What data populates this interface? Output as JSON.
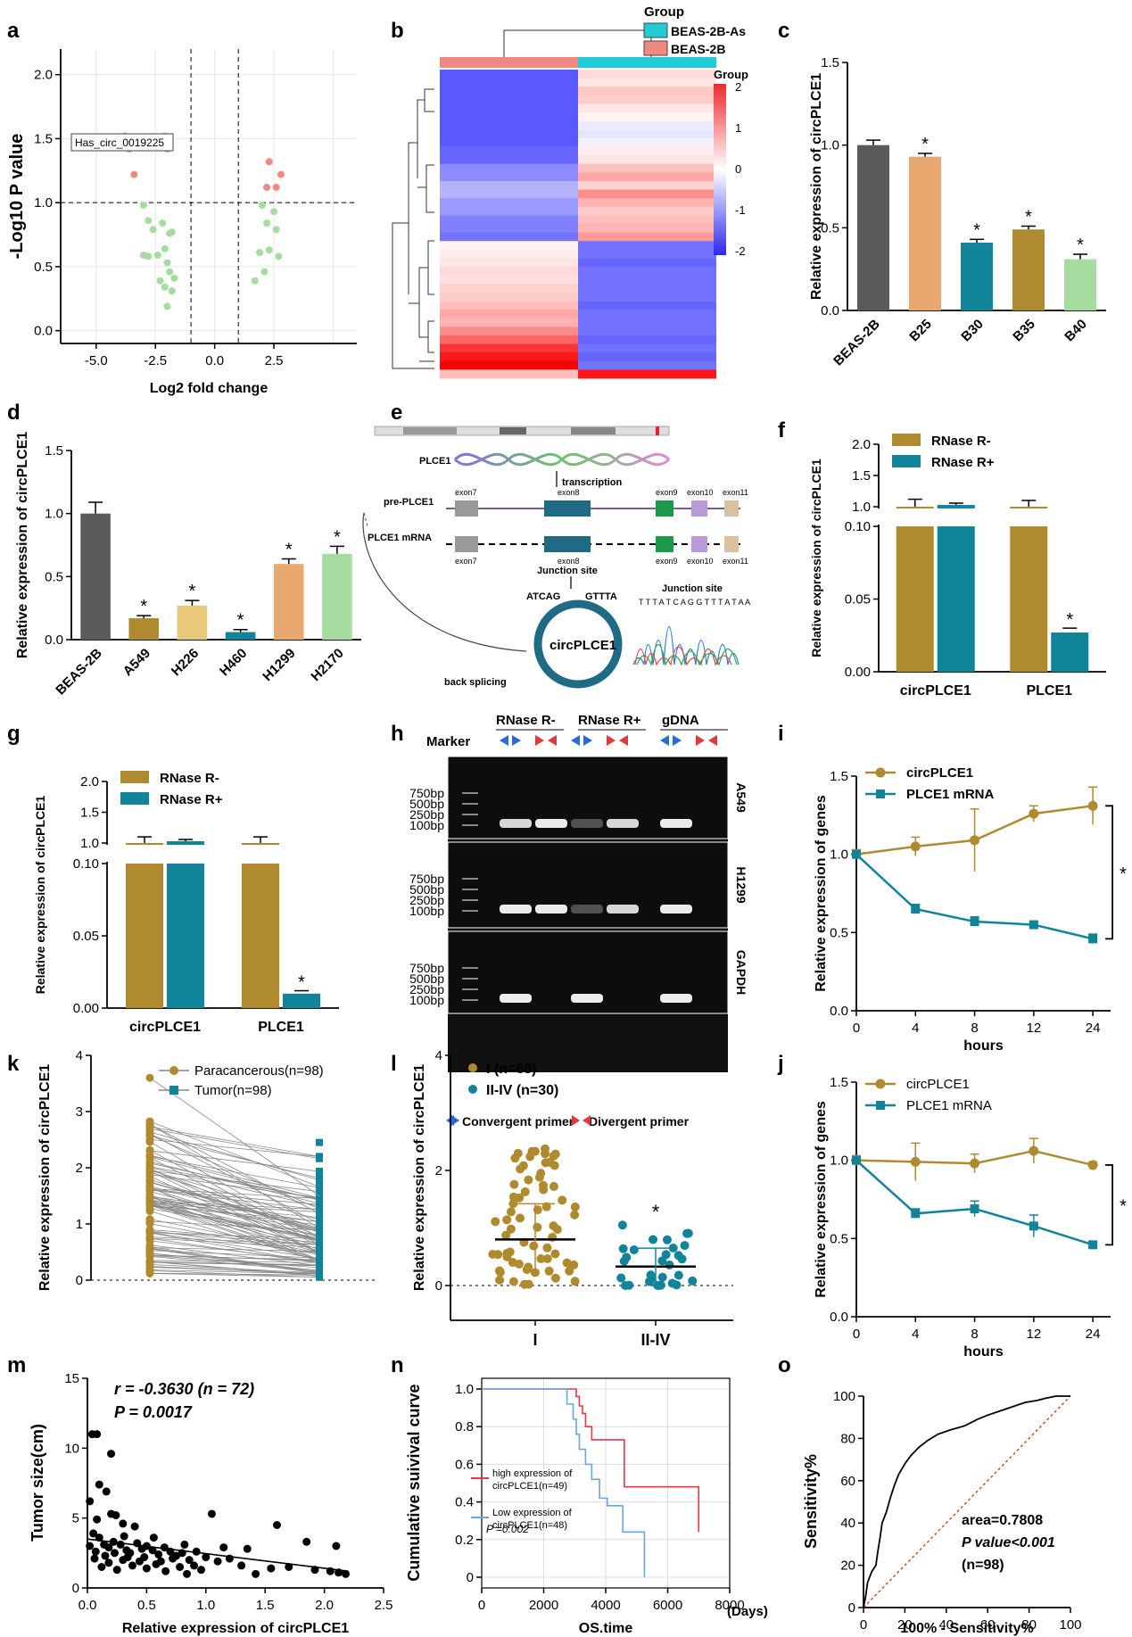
{
  "panels": {
    "a": {
      "label": "a",
      "xlabel": "Log2 fold change",
      "ylabel": "-Log10 P value",
      "xticks": [
        "-5.0",
        "-2.5",
        "0.0",
        "2.5"
      ],
      "yticks": [
        "0.0",
        "0.5",
        "1.0",
        "1.5",
        "2.0"
      ],
      "annotation": "Has_circ_0019225"
    },
    "b": {
      "label": "b",
      "legend_title": "Group",
      "legend": [
        "BEAS-2B-As",
        "BEAS-2B"
      ],
      "colorbar_title": "Group",
      "colorbar_ticks": [
        "2",
        "1",
        "0",
        "-1",
        "-2"
      ]
    },
    "c": {
      "label": "c"
    },
    "d": {
      "label": "d"
    },
    "e": {
      "label": "e",
      "gene": "PLCE1",
      "transcription": "transcription",
      "pre": "pre-PLCE1",
      "mrna": "PLCE1 mRNA",
      "exons_top": [
        "exon7",
        "exon8",
        "exon9",
        "exon10",
        "exon11"
      ],
      "exons_bottom": [
        "exon7",
        "exon8",
        "exon9",
        "exon10",
        "exon11"
      ],
      "junction": "Junction site",
      "junction2": "Junction site",
      "seq_left": "ATCAG",
      "seq_right": "GTTTA",
      "seq_read": "T T T A T C A G G T T T A T A A",
      "circ": "circPLCE1",
      "back": "back splicing"
    },
    "f": {
      "label": "f"
    },
    "g": {
      "label": "g"
    },
    "h": {
      "label": "h",
      "marker": "Marker",
      "groups": [
        "RNase R-",
        "RNase R+",
        "gDNA"
      ],
      "bp": [
        "750bp",
        "500bp",
        "250bp",
        "100bp"
      ],
      "genes": [
        "A549",
        "H1299",
        "GAPDH"
      ],
      "legend": [
        "Convergent primer",
        "Divergent primer"
      ]
    },
    "i": {
      "label": "i"
    },
    "j": {
      "label": "j"
    },
    "k": {
      "label": "k"
    },
    "l": {
      "label": "l"
    },
    "m": {
      "label": "m",
      "stat1": "r = -0.3630 (n = 72)",
      "stat2": "P = 0.0017"
    },
    "n": {
      "label": "n",
      "legend": [
        "high expression of circPLCE1(n=49)",
        "Low expression of circPLCE1(n=48)"
      ],
      "pval": "P =0.002",
      "xunit": "(Days)"
    },
    "o": {
      "label": "o",
      "area": "area=0.7808",
      "pval": "P value<0.001",
      "n": "(n=98)"
    }
  },
  "colors": {
    "brown": "#b08a2e",
    "teal": "#12849a",
    "salmon": "#f08a80",
    "cyan": "#22ccd6",
    "dark": "#5a5a5a",
    "peach": "#e8a870",
    "lightgreen": "#a6dca0",
    "red": "#e8364a",
    "blue": "#6aa6e0"
  },
  "chart_data": [
    {
      "id": "a",
      "type": "scatter",
      "title": "",
      "xlabel": "Log2 fold change",
      "ylabel": "-Log10 P value",
      "xlim": [
        -6.5,
        6
      ],
      "ylim": [
        -0.1,
        2.2
      ],
      "red_points": [
        [
          -3.8,
          1.52
        ],
        [
          -3.6,
          1.42
        ],
        [
          -3.4,
          1.22
        ],
        [
          -2.1,
          1.52
        ],
        [
          -2.0,
          1.42
        ],
        [
          2.3,
          1.32
        ],
        [
          2.6,
          1.12
        ],
        [
          2.8,
          1.22
        ],
        [
          2.2,
          1.12
        ]
      ],
      "green_points": [
        [
          -3.0,
          0.98
        ],
        [
          -2.8,
          0.86
        ],
        [
          -2.6,
          0.79
        ],
        [
          -2.2,
          0.84
        ],
        [
          -1.9,
          0.76
        ],
        [
          -1.8,
          0.77
        ],
        [
          -2.1,
          0.64
        ],
        [
          -2.4,
          0.59
        ],
        [
          -2.8,
          0.58
        ],
        [
          -2.0,
          0.53
        ],
        [
          -1.9,
          0.46
        ],
        [
          -1.7,
          0.41
        ],
        [
          -2.3,
          0.39
        ],
        [
          -2.1,
          0.34
        ],
        [
          -1.8,
          0.31
        ],
        [
          -2.0,
          0.19
        ],
        [
          -3.0,
          0.59
        ],
        [
          2.0,
          0.98
        ],
        [
          2.5,
          0.93
        ],
        [
          2.2,
          0.84
        ],
        [
          2.6,
          0.79
        ],
        [
          1.9,
          0.61
        ],
        [
          2.3,
          0.63
        ],
        [
          2.7,
          0.58
        ],
        [
          2.1,
          0.46
        ],
        [
          1.7,
          0.39
        ]
      ],
      "thresholds": {
        "x": [
          -1,
          1
        ],
        "y": 1.0
      }
    },
    {
      "id": "b",
      "type": "heatmap",
      "groups": [
        "BEAS-2B",
        "BEAS-2B-As"
      ],
      "colorscale": [
        -2,
        2
      ]
    },
    {
      "id": "c",
      "type": "bar",
      "categories": [
        "BEAS-2B",
        "B25",
        "B30",
        "B35",
        "B40"
      ],
      "values": [
        1.0,
        0.93,
        0.41,
        0.49,
        0.31
      ],
      "errors": [
        0.03,
        0.02,
        0.02,
        0.02,
        0.03
      ],
      "star": [
        false,
        true,
        true,
        true,
        true
      ],
      "ylabel": "Relative expression of circPLCE1",
      "ylim": [
        0,
        1.5
      ],
      "yticks": [
        "0.0",
        "0.5",
        "1.0",
        "1.5"
      ]
    },
    {
      "id": "d",
      "type": "bar",
      "categories": [
        "BEAS-2B",
        "A549",
        "H226",
        "H460",
        "H1299",
        "H2170"
      ],
      "values": [
        1.0,
        0.17,
        0.27,
        0.06,
        0.6,
        0.68
      ],
      "errors": [
        0.09,
        0.02,
        0.04,
        0.02,
        0.04,
        0.06
      ],
      "star": [
        false,
        true,
        true,
        true,
        true,
        true
      ],
      "ylabel": "Relative expression of circPLCE1",
      "ylim": [
        0,
        1.5
      ],
      "yticks": [
        "0.0",
        "0.5",
        "1.0",
        "1.5"
      ]
    },
    {
      "id": "f",
      "type": "bar",
      "categories": [
        "circPLCE1",
        "PLCE1"
      ],
      "series": [
        {
          "name": "RNase R-",
          "values": [
            1.0,
            1.0
          ]
        },
        {
          "name": "RNase R+",
          "values": [
            0.86,
            0.027
          ]
        }
      ],
      "errors": [
        [
          0.12,
          0.1
        ],
        [
          0.02,
          0.003
        ]
      ],
      "ylabel": "Relative expression of circPLCE1",
      "yticks": [
        "0.00",
        "0.05",
        "0.10",
        "1.0",
        "1.5",
        "2.0"
      ]
    },
    {
      "id": "g",
      "type": "bar",
      "categories": [
        "circPLCE1",
        "PLCE1"
      ],
      "series": [
        {
          "name": "RNase R-",
          "values": [
            1.0,
            1.0
          ]
        },
        {
          "name": "RNase R+",
          "values": [
            0.86,
            0.01
          ]
        }
      ],
      "errors": [
        [
          0.1,
          0.1
        ],
        [
          0.02,
          0.002
        ]
      ],
      "ylabel": "Relative expression of circPLCE1",
      "yticks": [
        "0.00",
        "0.05",
        "0.10",
        "1.0",
        "1.5",
        "2.0"
      ]
    },
    {
      "id": "i",
      "type": "line",
      "x": [
        0,
        4,
        8,
        12,
        24
      ],
      "xticks": [
        "0",
        "4",
        "8",
        "12",
        "24"
      ],
      "series": [
        {
          "name": "circPLCE1",
          "values": [
            1.0,
            1.05,
            1.09,
            1.26,
            1.31
          ],
          "err": [
            0.03,
            0.06,
            0.2,
            0.05,
            0.12
          ]
        },
        {
          "name": "PLCE1 mRNA",
          "values": [
            1.0,
            0.65,
            0.57,
            0.55,
            0.46
          ],
          "err": [
            0.02,
            0.03,
            0.03,
            0.02,
            0.03
          ]
        }
      ],
      "xlabel": "hours",
      "ylabel": "Relative expression of genes",
      "ylim": [
        0,
        1.5
      ],
      "yticks": [
        "0.0",
        "0.5",
        "1.0",
        "1.5"
      ]
    },
    {
      "id": "j",
      "type": "line",
      "x": [
        0,
        4,
        8,
        12,
        24
      ],
      "xticks": [
        "0",
        "4",
        "8",
        "12",
        "24"
      ],
      "series": [
        {
          "name": "circPLCE1",
          "values": [
            1.0,
            0.99,
            0.98,
            1.06,
            0.97
          ],
          "err": [
            0.03,
            0.12,
            0.06,
            0.08,
            0.02
          ]
        },
        {
          "name": "PLCE1 mRNA",
          "values": [
            1.0,
            0.66,
            0.69,
            0.58,
            0.46
          ],
          "err": [
            0.02,
            0.03,
            0.05,
            0.07,
            0.02
          ]
        }
      ],
      "xlabel": "hours",
      "ylabel": "Relative expression of genes",
      "ylim": [
        0,
        1.5
      ],
      "yticks": [
        "0.0",
        "0.5",
        "1.0",
        "1.5"
      ]
    },
    {
      "id": "k",
      "type": "scatter",
      "paired": true,
      "series": [
        {
          "name": "Paracancerous(n=98)",
          "max": 3.6
        },
        {
          "name": "Tumor(n=98)",
          "max": 2.45
        }
      ],
      "ylabel": "Relative expression of circPLCE1",
      "ylim": [
        0,
        4
      ],
      "yticks": [
        "0",
        "1",
        "2",
        "3",
        "4"
      ]
    },
    {
      "id": "l",
      "type": "scatter",
      "categories": [
        "I",
        "II-IV"
      ],
      "series": [
        {
          "name": "I (n=68)",
          "mean": 0.8,
          "sd": 0.62
        },
        {
          "name": "II-IV (n=30)",
          "mean": 0.33,
          "sd": 0.32
        }
      ],
      "ylabel": "Relative expression of circPLCE1",
      "ylim": [
        -0.3,
        4
      ],
      "yticks": [
        "0",
        "2",
        "4"
      ]
    },
    {
      "id": "m",
      "type": "scatter",
      "xlabel": "Relative expression of circPLCE1",
      "ylabel": "Tumor size(cm)",
      "xlim": [
        0,
        2.5
      ],
      "ylim": [
        0,
        15
      ],
      "xticks": [
        "0.0",
        "0.5",
        "1.0",
        "1.5",
        "2.0",
        "2.5"
      ],
      "yticks": [
        "0",
        "5",
        "10",
        "15"
      ],
      "fit": [
        [
          0.0,
          3.5
        ],
        [
          2.2,
          1.2
        ]
      ],
      "points": [
        [
          0.04,
          11
        ],
        [
          0.08,
          11
        ],
        [
          0.2,
          9.6
        ],
        [
          0.1,
          7.4
        ],
        [
          0.16,
          6.9
        ],
        [
          0.02,
          6.2
        ],
        [
          0.08,
          4.9
        ],
        [
          0.2,
          5.3
        ],
        [
          0.24,
          5.2
        ],
        [
          0.3,
          4.6
        ],
        [
          0.4,
          4.4
        ],
        [
          1.05,
          5.3
        ],
        [
          1.6,
          4.5
        ],
        [
          1.85,
          3.3
        ],
        [
          2.1,
          3.0
        ],
        [
          0.05,
          3.9
        ],
        [
          0.1,
          3.6
        ],
        [
          0.14,
          3.1
        ],
        [
          0.18,
          2.9
        ],
        [
          0.22,
          3.3
        ],
        [
          0.28,
          3.1
        ],
        [
          0.33,
          2.7
        ],
        [
          0.36,
          2.5
        ],
        [
          0.42,
          3.2
        ],
        [
          0.46,
          2.8
        ],
        [
          0.5,
          3.0
        ],
        [
          0.55,
          2.7
        ],
        [
          0.6,
          2.4
        ],
        [
          0.65,
          2.9
        ],
        [
          0.7,
          2.6
        ],
        [
          0.75,
          2.3
        ],
        [
          0.8,
          2.5
        ],
        [
          0.86,
          2.0
        ],
        [
          0.92,
          2.6
        ],
        [
          1.0,
          2.2
        ],
        [
          1.1,
          1.9
        ],
        [
          1.2,
          2.1
        ],
        [
          1.3,
          1.6
        ],
        [
          1.42,
          1.0
        ],
        [
          1.55,
          1.4
        ],
        [
          1.7,
          1.5
        ],
        [
          1.92,
          1.3
        ],
        [
          2.05,
          1.2
        ],
        [
          2.12,
          1.1
        ],
        [
          2.18,
          1.0
        ],
        [
          0.06,
          2.1
        ],
        [
          0.12,
          1.5
        ],
        [
          0.18,
          1.8
        ],
        [
          0.25,
          1.3
        ],
        [
          0.3,
          2.0
        ],
        [
          0.38,
          1.6
        ],
        [
          0.44,
          1.9
        ],
        [
          0.5,
          1.4
        ],
        [
          0.58,
          1.7
        ],
        [
          0.66,
          1.2
        ],
        [
          0.72,
          2.1
        ],
        [
          0.78,
          1.5
        ],
        [
          0.84,
          1.0
        ],
        [
          0.9,
          1.6
        ],
        [
          0.96,
          1.3
        ],
        [
          0.02,
          3.0
        ],
        [
          0.07,
          2.6
        ],
        [
          0.15,
          2.3
        ],
        [
          0.23,
          2.5
        ],
        [
          0.34,
          2.2
        ],
        [
          0.48,
          2.2
        ],
        [
          0.62,
          1.9
        ],
        [
          0.82,
          3.1
        ],
        [
          1.15,
          2.9
        ],
        [
          1.35,
          2.8
        ],
        [
          0.56,
          3.6
        ],
        [
          0.31,
          3.7
        ]
      ]
    },
    {
      "id": "n",
      "type": "line",
      "xlabel": "OS.time",
      "ylabel": "Cumulative suivival curve",
      "xlim": [
        0,
        8000
      ],
      "ylim": [
        0,
        1
      ],
      "xticks": [
        "0",
        "2000",
        "4000",
        "6000",
        "8000"
      ],
      "yticks": [
        "0",
        "0.2",
        "0.4",
        "0.6",
        "0.8",
        "1.0"
      ],
      "series": [
        {
          "name": "high expression of circPLCE1(n=49)",
          "steps": [
            [
              0,
              1.0
            ],
            [
              3000,
              1.0
            ],
            [
              3050,
              0.96
            ],
            [
              3150,
              0.91
            ],
            [
              3250,
              0.87
            ],
            [
              3350,
              0.8
            ],
            [
              3550,
              0.73
            ],
            [
              4500,
              0.73
            ],
            [
              4600,
              0.48
            ],
            [
              6900,
              0.48
            ],
            [
              7000,
              0.24
            ]
          ]
        },
        {
          "name": "Low expression of circPLCE1(n=48)",
          "steps": [
            [
              0,
              1.0
            ],
            [
              2700,
              1.0
            ],
            [
              2750,
              0.92
            ],
            [
              2950,
              0.84
            ],
            [
              3050,
              0.76
            ],
            [
              3150,
              0.68
            ],
            [
              3350,
              0.6
            ],
            [
              3550,
              0.52
            ],
            [
              3800,
              0.42
            ],
            [
              4050,
              0.38
            ],
            [
              4500,
              0.38
            ],
            [
              4550,
              0.24
            ],
            [
              5200,
              0.24
            ],
            [
              5250,
              0.0
            ]
          ]
        }
      ]
    },
    {
      "id": "o",
      "type": "line",
      "xlabel": "100% - Sensitivity%",
      "ylabel": "Sensitivity%",
      "xlim": [
        0,
        100
      ],
      "ylim": [
        0,
        100
      ],
      "xticks": [
        "0",
        "20",
        "40",
        "60",
        "80",
        "100"
      ],
      "yticks": [
        "0",
        "20",
        "40",
        "60",
        "80",
        "100"
      ],
      "roc": [
        [
          0,
          0
        ],
        [
          1,
          5
        ],
        [
          2,
          12
        ],
        [
          4,
          17
        ],
        [
          6,
          20
        ],
        [
          7,
          27
        ],
        [
          8,
          33
        ],
        [
          9,
          40
        ],
        [
          11,
          45
        ],
        [
          13,
          52
        ],
        [
          15,
          58
        ],
        [
          17,
          63
        ],
        [
          20,
          68
        ],
        [
          23,
          72
        ],
        [
          27,
          76
        ],
        [
          31,
          79
        ],
        [
          36,
          82
        ],
        [
          42,
          84
        ],
        [
          49,
          86
        ],
        [
          55,
          89
        ],
        [
          60,
          91
        ],
        [
          66,
          93
        ],
        [
          72,
          95
        ],
        [
          78,
          97
        ],
        [
          84,
          98
        ],
        [
          88,
          99
        ],
        [
          93,
          100
        ],
        [
          100,
          100
        ]
      ]
    }
  ]
}
